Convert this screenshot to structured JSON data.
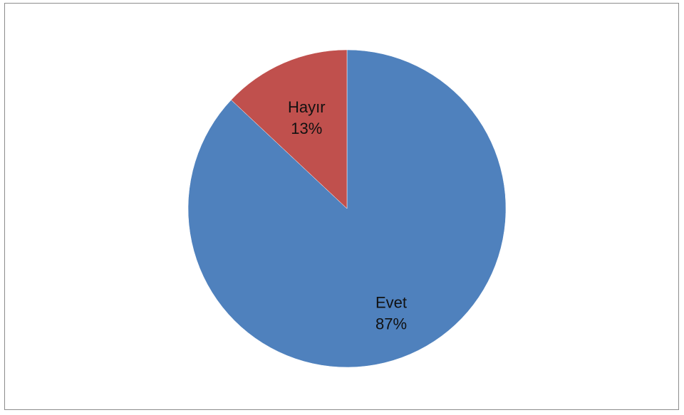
{
  "chart_data": {
    "type": "pie",
    "title": "",
    "start_angle_deg": 0,
    "direction": "clockwise",
    "slices": [
      {
        "name": "Evet",
        "value": 87,
        "label": "87%",
        "color": "#4F81BD"
      },
      {
        "name": "Hayır",
        "value": 13,
        "label": "13%",
        "color": "#C0504D"
      }
    ],
    "legend": "none",
    "data_labels": "inside"
  }
}
